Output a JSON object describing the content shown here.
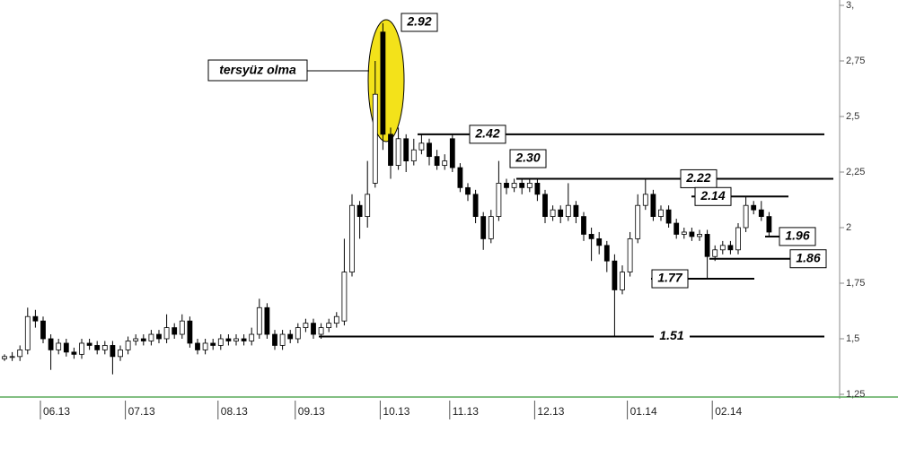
{
  "chart_data": {
    "type": "candlestick",
    "annotation": "tersyüz olma",
    "ylim": [
      1.25,
      3
    ],
    "yticks": [
      {
        "value": 3,
        "label": "3,"
      },
      {
        "value": 2.75,
        "label": "2,75"
      },
      {
        "value": 2.5,
        "label": "2,5"
      },
      {
        "value": 2.25,
        "label": "2,25"
      },
      {
        "value": 2,
        "label": "2"
      },
      {
        "value": 1.75,
        "label": "1,75"
      },
      {
        "value": 1.5,
        "label": "1,5"
      },
      {
        "value": 1.25,
        "label": "1,25"
      }
    ],
    "categories": [
      null,
      null,
      null,
      null,
      null,
      "06.13",
      null,
      null,
      null,
      null,
      null,
      null,
      null,
      null,
      null,
      null,
      "07.13",
      null,
      null,
      null,
      null,
      null,
      null,
      null,
      null,
      null,
      null,
      null,
      "08.13",
      null,
      null,
      null,
      null,
      null,
      null,
      null,
      null,
      null,
      "09.13",
      null,
      null,
      null,
      null,
      null,
      null,
      null,
      null,
      null,
      null,
      "10.13",
      null,
      null,
      null,
      null,
      null,
      null,
      null,
      null,
      "11.13",
      null,
      null,
      null,
      null,
      null,
      null,
      null,
      null,
      null,
      null,
      "12.13",
      null,
      null,
      null,
      null,
      null,
      null,
      null,
      null,
      null,
      null,
      null,
      "01.14",
      null,
      null,
      null,
      null,
      null,
      null,
      null,
      null,
      null,
      null,
      "02.14",
      null,
      null,
      null,
      null,
      null,
      null,
      null
    ],
    "ohlc": [
      [
        1.41,
        1.43,
        1.4,
        1.42
      ],
      [
        1.42,
        1.44,
        1.4,
        1.42
      ],
      [
        1.42,
        1.47,
        1.4,
        1.45
      ],
      [
        1.45,
        1.64,
        1.43,
        1.6
      ],
      [
        1.6,
        1.63,
        1.55,
        1.58
      ],
      [
        1.58,
        1.6,
        1.48,
        1.5
      ],
      [
        1.5,
        1.52,
        1.36,
        1.45
      ],
      [
        1.45,
        1.5,
        1.43,
        1.48
      ],
      [
        1.48,
        1.5,
        1.42,
        1.44
      ],
      [
        1.44,
        1.46,
        1.41,
        1.43
      ],
      [
        1.43,
        1.5,
        1.41,
        1.48
      ],
      [
        1.48,
        1.5,
        1.45,
        1.47
      ],
      [
        1.47,
        1.49,
        1.43,
        1.45
      ],
      [
        1.45,
        1.49,
        1.43,
        1.47
      ],
      [
        1.47,
        1.49,
        1.34,
        1.42
      ],
      [
        1.42,
        1.47,
        1.4,
        1.45
      ],
      [
        1.45,
        1.51,
        1.43,
        1.49
      ],
      [
        1.49,
        1.52,
        1.47,
        1.5
      ],
      [
        1.5,
        1.52,
        1.47,
        1.49
      ],
      [
        1.49,
        1.54,
        1.47,
        1.52
      ],
      [
        1.52,
        1.54,
        1.48,
        1.5
      ],
      [
        1.5,
        1.61,
        1.48,
        1.55
      ],
      [
        1.55,
        1.57,
        1.5,
        1.52
      ],
      [
        1.52,
        1.61,
        1.5,
        1.58
      ],
      [
        1.58,
        1.6,
        1.46,
        1.48
      ],
      [
        1.48,
        1.5,
        1.43,
        1.45
      ],
      [
        1.45,
        1.5,
        1.43,
        1.48
      ],
      [
        1.48,
        1.5,
        1.45,
        1.47
      ],
      [
        1.47,
        1.52,
        1.45,
        1.5
      ],
      [
        1.5,
        1.52,
        1.47,
        1.49
      ],
      [
        1.49,
        1.52,
        1.47,
        1.5
      ],
      [
        1.5,
        1.52,
        1.47,
        1.49
      ],
      [
        1.49,
        1.55,
        1.47,
        1.52
      ],
      [
        1.52,
        1.68,
        1.5,
        1.64
      ],
      [
        1.64,
        1.66,
        1.5,
        1.52
      ],
      [
        1.52,
        1.54,
        1.45,
        1.47
      ],
      [
        1.47,
        1.54,
        1.45,
        1.52
      ],
      [
        1.52,
        1.54,
        1.48,
        1.5
      ],
      [
        1.5,
        1.57,
        1.48,
        1.55
      ],
      [
        1.55,
        1.59,
        1.53,
        1.57
      ],
      [
        1.57,
        1.59,
        1.5,
        1.52
      ],
      [
        1.52,
        1.57,
        1.5,
        1.55
      ],
      [
        1.55,
        1.59,
        1.53,
        1.57
      ],
      [
        1.57,
        1.62,
        1.55,
        1.6
      ],
      [
        1.58,
        1.95,
        1.56,
        1.8
      ],
      [
        1.8,
        2.15,
        1.78,
        2.1
      ],
      [
        2.1,
        2.12,
        1.95,
        2.05
      ],
      [
        2.05,
        2.3,
        2.0,
        2.15
      ],
      [
        2.2,
        2.75,
        2.18,
        2.6
      ],
      [
        2.88,
        2.92,
        2.35,
        2.42
      ],
      [
        2.42,
        2.45,
        2.22,
        2.28
      ],
      [
        2.28,
        2.45,
        2.26,
        2.4
      ],
      [
        2.4,
        2.42,
        2.25,
        2.3
      ],
      [
        2.3,
        2.4,
        2.28,
        2.35
      ],
      [
        2.35,
        2.42,
        2.33,
        2.38
      ],
      [
        2.38,
        2.4,
        2.28,
        2.32
      ],
      [
        2.32,
        2.35,
        2.26,
        2.28
      ],
      [
        2.28,
        2.33,
        2.26,
        2.3
      ],
      [
        2.4,
        2.42,
        2.25,
        2.27
      ],
      [
        2.27,
        2.29,
        2.16,
        2.18
      ],
      [
        2.18,
        2.2,
        2.12,
        2.15
      ],
      [
        2.15,
        2.17,
        2.02,
        2.05
      ],
      [
        2.05,
        2.07,
        1.9,
        1.95
      ],
      [
        1.95,
        2.08,
        1.93,
        2.05
      ],
      [
        2.05,
        2.3,
        2.03,
        2.2
      ],
      [
        2.2,
        2.22,
        2.15,
        2.18
      ],
      [
        2.18,
        2.22,
        2.16,
        2.2
      ],
      [
        2.2,
        2.22,
        2.15,
        2.18
      ],
      [
        2.18,
        2.22,
        2.16,
        2.2
      ],
      [
        2.2,
        2.22,
        2.12,
        2.15
      ],
      [
        2.15,
        2.17,
        2.02,
        2.05
      ],
      [
        2.05,
        2.1,
        2.03,
        2.08
      ],
      [
        2.08,
        2.1,
        2.02,
        2.05
      ],
      [
        2.05,
        2.2,
        2.03,
        2.1
      ],
      [
        2.1,
        2.12,
        2.02,
        2.05
      ],
      [
        2.05,
        2.07,
        1.94,
        1.97
      ],
      [
        1.97,
        2.0,
        1.85,
        1.95
      ],
      [
        1.95,
        1.98,
        1.88,
        1.92
      ],
      [
        1.92,
        1.94,
        1.8,
        1.85
      ],
      [
        1.85,
        1.88,
        1.51,
        1.72
      ],
      [
        1.72,
        1.83,
        1.7,
        1.8
      ],
      [
        1.8,
        1.98,
        1.78,
        1.95
      ],
      [
        1.95,
        2.15,
        1.93,
        2.1
      ],
      [
        2.1,
        2.22,
        2.08,
        2.15
      ],
      [
        2.15,
        2.17,
        2.03,
        2.05
      ],
      [
        2.05,
        2.1,
        2.03,
        2.08
      ],
      [
        2.08,
        2.1,
        2.0,
        2.02
      ],
      [
        2.02,
        2.04,
        1.95,
        1.97
      ],
      [
        1.97,
        2.0,
        1.95,
        1.98
      ],
      [
        1.98,
        2.0,
        1.94,
        1.96
      ],
      [
        1.96,
        1.99,
        1.94,
        1.97
      ],
      [
        1.97,
        1.99,
        1.77,
        1.87
      ],
      [
        1.87,
        1.92,
        1.85,
        1.9
      ],
      [
        1.9,
        1.94,
        1.88,
        1.92
      ],
      [
        1.92,
        1.94,
        1.88,
        1.9
      ],
      [
        1.9,
        2.02,
        1.88,
        2.0
      ],
      [
        2.0,
        2.14,
        1.98,
        2.1
      ],
      [
        2.1,
        2.12,
        2.06,
        2.08
      ],
      [
        2.08,
        2.12,
        2.03,
        2.05
      ],
      [
        2.05,
        2.07,
        1.96,
        1.98
      ]
    ],
    "levels": [
      {
        "value": 2.92,
        "label": "2.92"
      },
      {
        "value": 2.42,
        "label": "2.42"
      },
      {
        "value": 2.3,
        "label": "2.30"
      },
      {
        "value": 2.22,
        "label": "2.22"
      },
      {
        "value": 2.14,
        "label": "2.14"
      },
      {
        "value": 1.96,
        "label": "1.96"
      },
      {
        "value": 1.86,
        "label": "1.86"
      },
      {
        "value": 1.77,
        "label": "1.77"
      },
      {
        "value": 1.51,
        "label": "1.51"
      }
    ]
  }
}
